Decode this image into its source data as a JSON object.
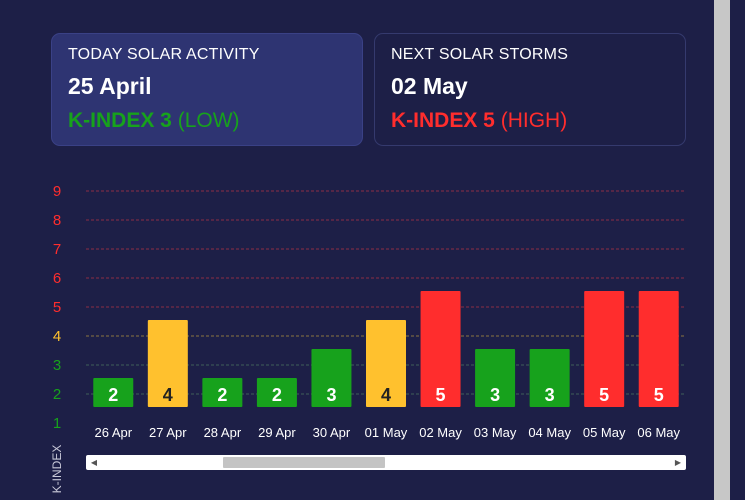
{
  "today": {
    "heading": "TODAY SOLAR ACTIVITY",
    "date": "25 April",
    "k_label": "K-INDEX 3",
    "k_level": "(LOW)",
    "color": "#17a21c"
  },
  "next": {
    "heading": "NEXT SOLAR STORMS",
    "date": "02 May",
    "k_label": "K-INDEX 5",
    "k_level": "(HIGH)",
    "color": "#ff2d2d"
  },
  "chart_data": {
    "type": "bar",
    "categories": [
      "26 Apr",
      "27 Apr",
      "28 Apr",
      "29 Apr",
      "30 Apr",
      "01 May",
      "02 May",
      "03 May",
      "04 May",
      "05 May",
      "06 May"
    ],
    "values": [
      2,
      4,
      2,
      2,
      3,
      4,
      5,
      3,
      3,
      5,
      5
    ],
    "ylabel": "K-INDEX",
    "y_ticks": [
      1,
      2,
      3,
      4,
      5,
      6,
      7,
      8,
      9
    ],
    "ylim": [
      1,
      9
    ],
    "grid": true,
    "level_colors": {
      "low": "#17a21c",
      "moderate": "#ffc12e",
      "high": "#ff2d2d"
    }
  },
  "scrollbar": {
    "left_arrow": "◀",
    "right_arrow": "▶",
    "scroll_position": 0.3
  }
}
